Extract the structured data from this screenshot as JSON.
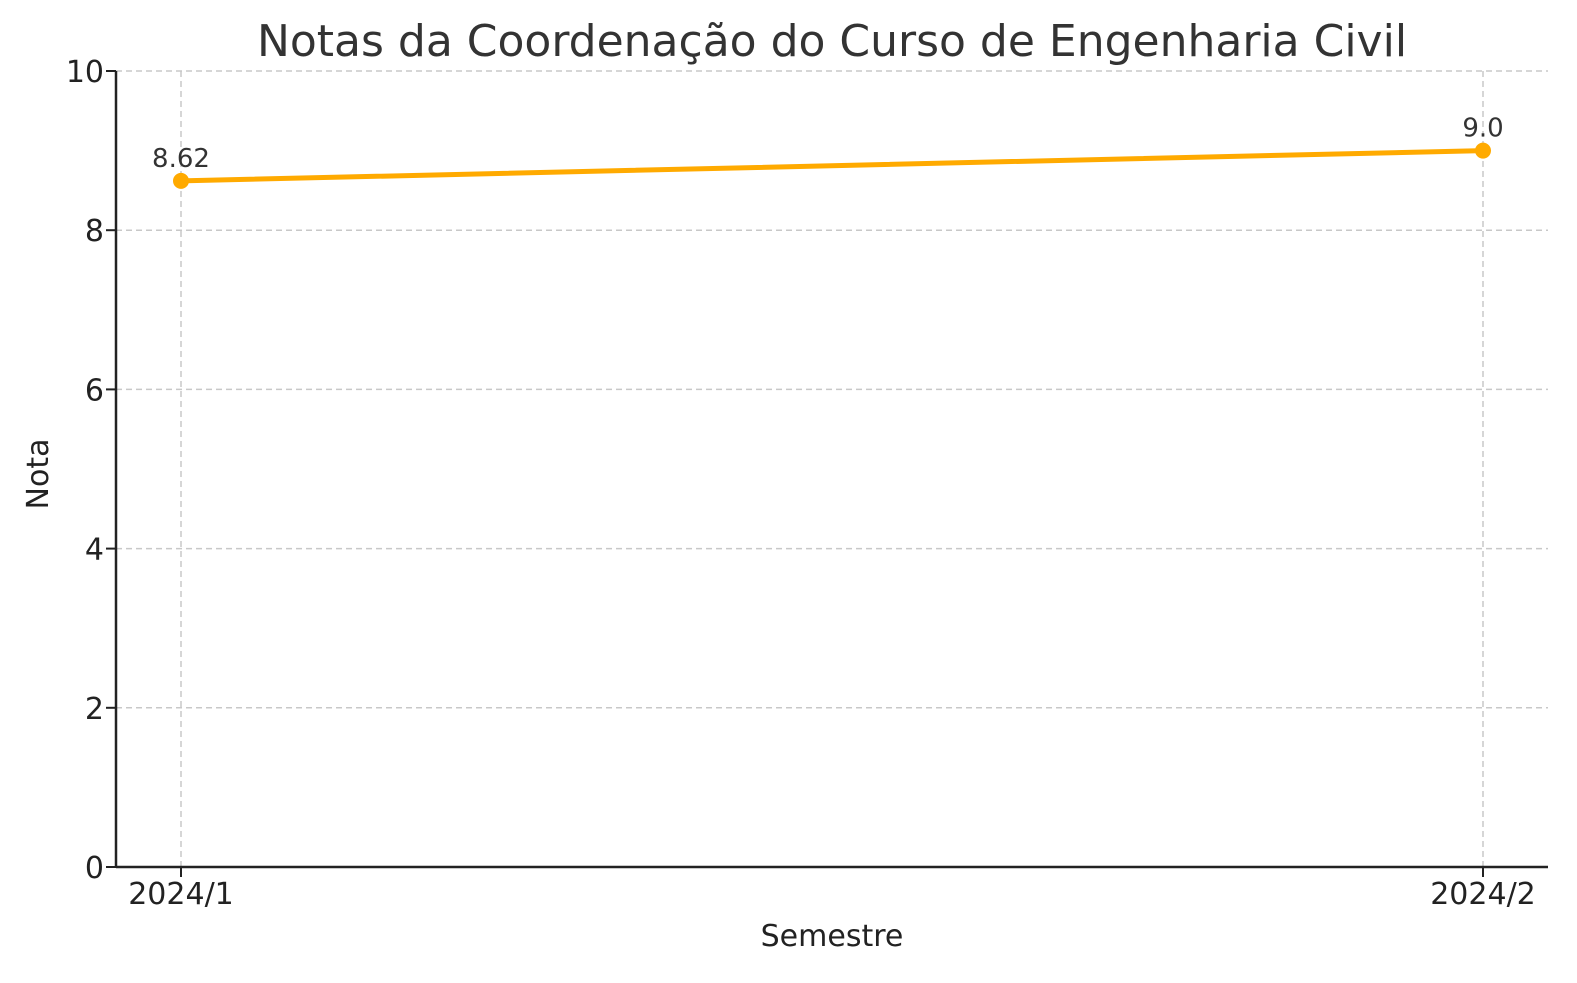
{
  "chart_data": {
    "type": "line",
    "title": "Notas da Coordenação do Curso de Engenharia Civil",
    "xlabel": "Semestre",
    "ylabel": "Nota",
    "categories": [
      "2024/1",
      "2024/2"
    ],
    "series": [
      {
        "values": [
          8.62,
          9.0
        ],
        "data_labels": [
          "8.62",
          "9.0"
        ],
        "color": "#FFAA00"
      }
    ],
    "ylim": [
      0,
      10
    ],
    "yticks": [
      "0",
      "2",
      "4",
      "6",
      "8",
      "10"
    ],
    "grid": true
  }
}
